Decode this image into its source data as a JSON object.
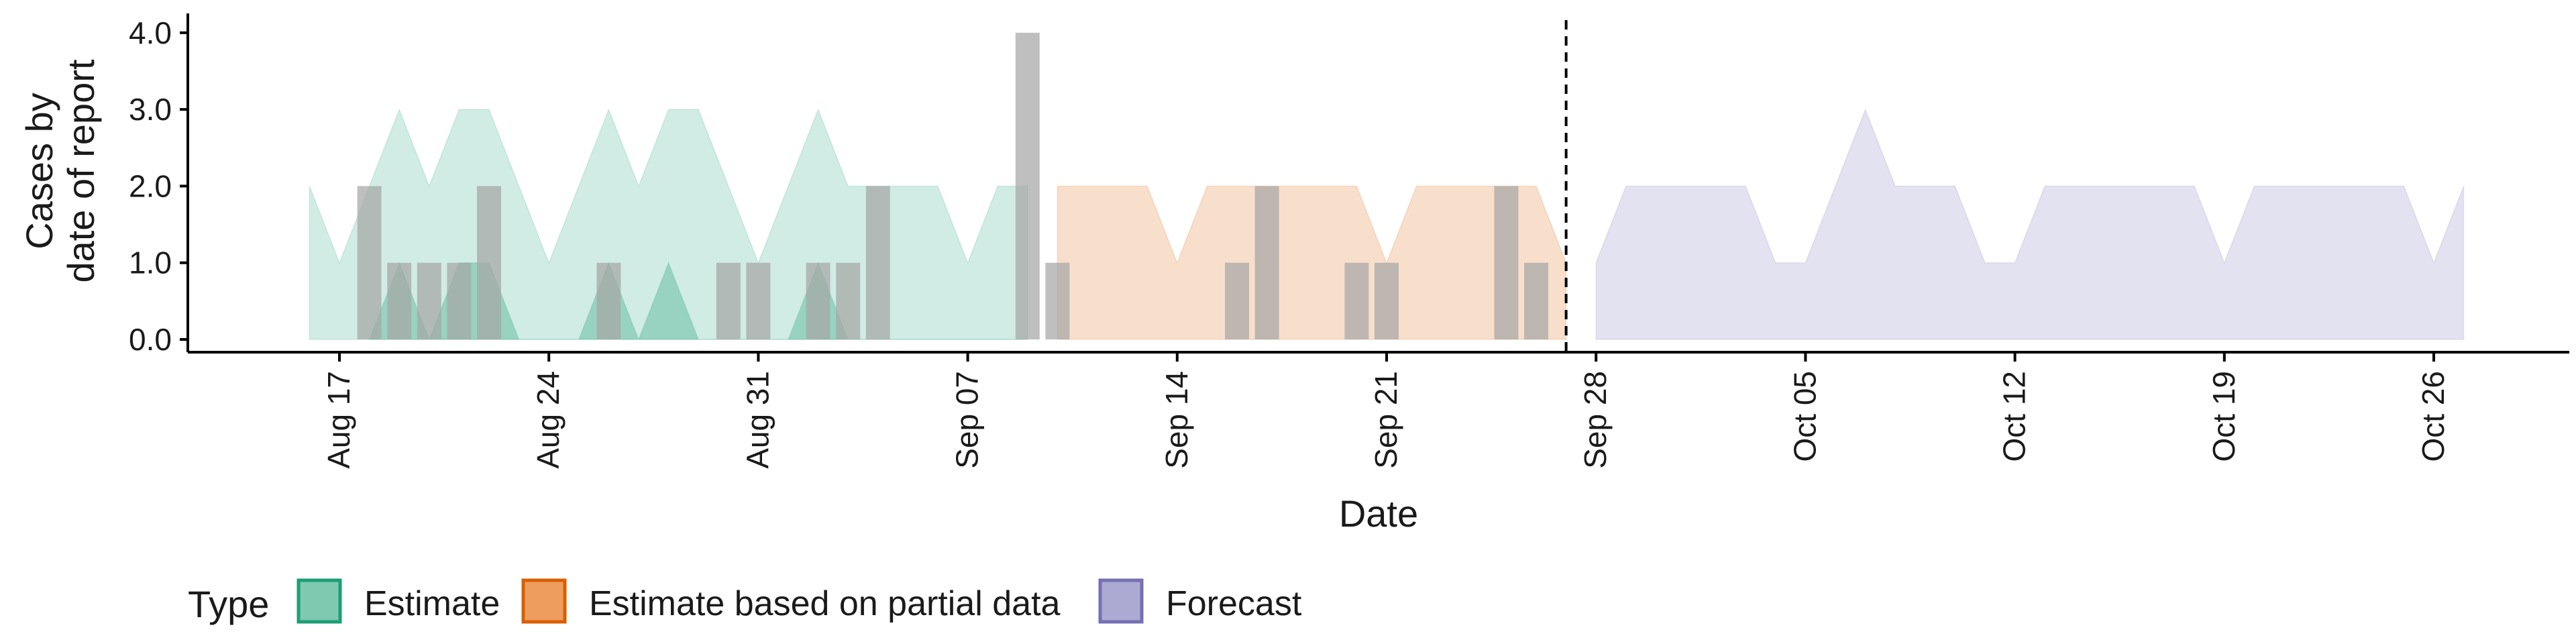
{
  "chart_data": {
    "type": "area",
    "xlabel": "Date",
    "ylabel_lines": [
      "Cases by",
      "date of report"
    ],
    "y_ticks": [
      "0.0",
      "1.0",
      "2.0",
      "3.0",
      "4.0"
    ],
    "ylim": [
      0,
      4.2
    ],
    "x_ticks": [
      {
        "date": "2020-08-17",
        "label": "Aug 17"
      },
      {
        "date": "2020-08-24",
        "label": "Aug 24"
      },
      {
        "date": "2020-08-31",
        "label": "Aug 31"
      },
      {
        "date": "2020-09-07",
        "label": "Sep 07"
      },
      {
        "date": "2020-09-14",
        "label": "Sep 14"
      },
      {
        "date": "2020-09-21",
        "label": "Sep 21"
      },
      {
        "date": "2020-09-28",
        "label": "Sep 28"
      },
      {
        "date": "2020-10-05",
        "label": "Oct 05"
      },
      {
        "date": "2020-10-12",
        "label": "Oct 12"
      },
      {
        "date": "2020-10-19",
        "label": "Oct 19"
      },
      {
        "date": "2020-10-26",
        "label": "Oct 26"
      }
    ],
    "xlim": [
      "2020-08-11",
      "2020-11-01"
    ],
    "forecast_date": "2020-09-27",
    "grid": false,
    "legend": {
      "title": "Type",
      "position": "bottom-left",
      "entries": [
        {
          "label": "Estimate",
          "fill": "#7fc9b0",
          "stroke": "#1b9e77"
        },
        {
          "label": "Estimate based on partial data",
          "fill": "#ee9d5e",
          "stroke": "#d95f02"
        },
        {
          "label": "Forecast",
          "fill": "#aca9d2",
          "stroke": "#7570b3"
        }
      ]
    },
    "bar_color": "#a6a6a6",
    "reported_cases": [
      {
        "date": "2020-08-18",
        "value": 2
      },
      {
        "date": "2020-08-19",
        "value": 1
      },
      {
        "date": "2020-08-20",
        "value": 1
      },
      {
        "date": "2020-08-21",
        "value": 1
      },
      {
        "date": "2020-08-22",
        "value": 2
      },
      {
        "date": "2020-08-26",
        "value": 1
      },
      {
        "date": "2020-08-30",
        "value": 1
      },
      {
        "date": "2020-08-31",
        "value": 1
      },
      {
        "date": "2020-09-02",
        "value": 1
      },
      {
        "date": "2020-09-03",
        "value": 1
      },
      {
        "date": "2020-09-04",
        "value": 2
      },
      {
        "date": "2020-09-09",
        "value": 4
      },
      {
        "date": "2020-09-10",
        "value": 1
      },
      {
        "date": "2020-09-16",
        "value": 1
      },
      {
        "date": "2020-09-17",
        "value": 2
      },
      {
        "date": "2020-09-20",
        "value": 1
      },
      {
        "date": "2020-09-21",
        "value": 1
      },
      {
        "date": "2020-09-25",
        "value": 2
      },
      {
        "date": "2020-09-26",
        "value": 1
      }
    ],
    "series": [
      {
        "type": "Estimate",
        "fill": "#1b9e77",
        "ribbons": [
          {
            "dates": [
              "2020-08-16",
              "2020-08-17",
              "2020-08-18",
              "2020-08-19",
              "2020-08-20",
              "2020-08-21",
              "2020-08-22",
              "2020-08-23",
              "2020-08-24",
              "2020-08-25",
              "2020-08-26",
              "2020-08-27",
              "2020-08-28",
              "2020-08-29",
              "2020-08-30",
              "2020-08-31",
              "2020-09-01",
              "2020-09-02",
              "2020-09-03",
              "2020-09-04",
              "2020-09-05",
              "2020-09-06",
              "2020-09-07",
              "2020-09-08",
              "2020-09-09"
            ],
            "upper": [
              2,
              1,
              2,
              3,
              2,
              3,
              3,
              2,
              1,
              2,
              3,
              2,
              3,
              3,
              2,
              1,
              2,
              3,
              2,
              2,
              2,
              2,
              1,
              2,
              2
            ],
            "lower": [
              0,
              0,
              0,
              0,
              0,
              0,
              0,
              0,
              0,
              0,
              0,
              0,
              0,
              0,
              0,
              0,
              0,
              0,
              0,
              0,
              0,
              0,
              0,
              0,
              0
            ]
          },
          {
            "dates": [
              "2020-08-18",
              "2020-08-19",
              "2020-08-20",
              "2020-08-21",
              "2020-08-22",
              "2020-08-23",
              "2020-08-24",
              "2020-08-25",
              "2020-08-26",
              "2020-08-27",
              "2020-08-28",
              "2020-08-29",
              "2020-08-30",
              "2020-08-31",
              "2020-09-01",
              "2020-09-02",
              "2020-09-03",
              "2020-09-04",
              "2020-09-05",
              "2020-09-06",
              "2020-09-07",
              "2020-09-08",
              "2020-09-09"
            ],
            "upper": [
              0,
              1,
              0,
              1,
              1,
              0,
              0,
              0,
              1,
              0,
              1,
              0,
              0,
              0,
              0,
              1,
              0,
              0,
              0,
              0,
              0,
              0,
              0
            ],
            "lower": [
              0,
              0,
              0,
              0,
              0,
              0,
              0,
              0,
              0,
              0,
              0,
              0,
              0,
              0,
              0,
              0,
              0,
              0,
              0,
              0,
              0,
              0,
              0
            ]
          }
        ]
      },
      {
        "type": "Estimate based on partial data",
        "fill": "#d95f02",
        "ribbons": [
          {
            "dates": [
              "2020-09-10",
              "2020-09-11",
              "2020-09-12",
              "2020-09-13",
              "2020-09-14",
              "2020-09-15",
              "2020-09-16",
              "2020-09-17",
              "2020-09-18",
              "2020-09-19",
              "2020-09-20",
              "2020-09-21",
              "2020-09-22",
              "2020-09-23",
              "2020-09-24",
              "2020-09-25",
              "2020-09-26",
              "2020-09-27"
            ],
            "upper": [
              2,
              2,
              2,
              2,
              1,
              2,
              2,
              2,
              2,
              2,
              2,
              1,
              2,
              2,
              2,
              2,
              2,
              1
            ],
            "lower": [
              0,
              0,
              0,
              0,
              0,
              0,
              0,
              0,
              0,
              0,
              0,
              0,
              0,
              0,
              0,
              0,
              0,
              0
            ]
          }
        ]
      },
      {
        "type": "Forecast",
        "fill": "#7570b3",
        "ribbons": [
          {
            "dates": [
              "2020-09-28",
              "2020-09-29",
              "2020-09-30",
              "2020-10-01",
              "2020-10-02",
              "2020-10-03",
              "2020-10-04",
              "2020-10-05",
              "2020-10-06",
              "2020-10-07",
              "2020-10-08",
              "2020-10-09",
              "2020-10-10",
              "2020-10-11",
              "2020-10-12",
              "2020-10-13",
              "2020-10-14",
              "2020-10-15",
              "2020-10-16",
              "2020-10-17",
              "2020-10-18",
              "2020-10-19",
              "2020-10-20",
              "2020-10-21",
              "2020-10-22",
              "2020-10-23",
              "2020-10-24",
              "2020-10-25",
              "2020-10-26",
              "2020-10-27"
            ],
            "upper": [
              1,
              2,
              2,
              2,
              2,
              2,
              1,
              1,
              2,
              3,
              2,
              2,
              2,
              1,
              1,
              2,
              2,
              2,
              2,
              2,
              2,
              1,
              2,
              2,
              2,
              2,
              2,
              2,
              1,
              2
            ],
            "lower": [
              0,
              0,
              0,
              0,
              0,
              0,
              0,
              0,
              0,
              0,
              0,
              0,
              0,
              0,
              0,
              0,
              0,
              0,
              0,
              0,
              0,
              0,
              0,
              0,
              0,
              0,
              0,
              0,
              0,
              0
            ]
          }
        ]
      }
    ]
  }
}
